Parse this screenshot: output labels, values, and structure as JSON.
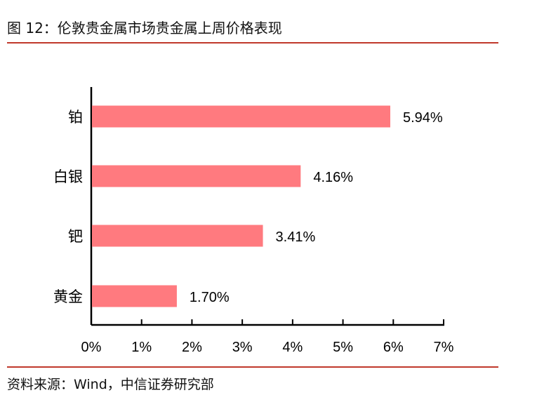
{
  "header": {
    "title": "图 12：伦敦贵金属市场贵金属上周价格表现"
  },
  "footer": {
    "source": "资料来源：Wind，中信证券研究部"
  },
  "colors": {
    "bar": "#ff7a7f",
    "rule": "#c0392b",
    "axis": "#000000"
  },
  "chart_data": {
    "type": "bar",
    "orientation": "horizontal",
    "categories": [
      "铂",
      "白银",
      "钯",
      "黄金"
    ],
    "values": [
      5.94,
      4.16,
      3.41,
      1.7
    ],
    "value_labels": [
      "5.94%",
      "4.16%",
      "3.41%",
      "1.70%"
    ],
    "xlim": [
      0,
      7
    ],
    "xticks": [
      0,
      1,
      2,
      3,
      4,
      5,
      6,
      7
    ],
    "xtick_labels": [
      "0%",
      "1%",
      "2%",
      "3%",
      "4%",
      "5%",
      "6%",
      "7%"
    ],
    "grid": false,
    "legend": "none"
  }
}
